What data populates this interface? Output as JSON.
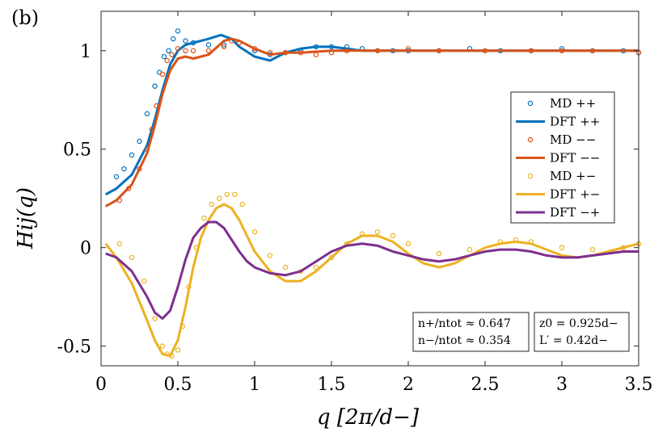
{
  "chart_data": {
    "type": "line",
    "panel_label": "(b)",
    "xlabel": "q [2π/d−]",
    "ylabel": "Hij(q)",
    "xlim": [
      0,
      3.5
    ],
    "ylim": [
      -0.6,
      1.2
    ],
    "xticks": [
      0,
      0.5,
      1,
      1.5,
      2,
      2.5,
      3,
      3.5
    ],
    "xtick_labels": [
      "0",
      "0.5",
      "1",
      "1.5",
      "2",
      "2.5",
      "3",
      "3.5"
    ],
    "yticks": [
      -0.5,
      0,
      0.5,
      1
    ],
    "ytick_labels": [
      "-0.5",
      "0",
      "0.5",
      "1"
    ],
    "grid": false,
    "legend_position": "right",
    "colors": {
      "pp": "#0072BD",
      "mm": "#D95319",
      "pm": "#EDB120",
      "mp": "#7E2F8E"
    },
    "series": [
      {
        "name": "MD ++",
        "kind": "markers",
        "color": "#0072BD",
        "x": [
          0.1,
          0.15,
          0.2,
          0.25,
          0.3,
          0.35,
          0.38,
          0.41,
          0.44,
          0.47,
          0.5,
          0.55,
          0.6,
          0.7,
          0.8,
          0.9,
          1.0,
          1.1,
          1.2,
          1.3,
          1.4,
          1.5,
          1.6,
          1.7,
          1.8,
          1.9,
          2.0,
          2.2,
          2.4,
          2.6,
          2.8,
          3.0,
          3.2,
          3.4,
          3.5
        ],
        "y": [
          0.36,
          0.4,
          0.47,
          0.54,
          0.68,
          0.82,
          0.89,
          0.97,
          1.0,
          1.06,
          1.1,
          1.05,
          1.04,
          1.03,
          1.03,
          1.04,
          1.0,
          0.98,
          0.99,
          1.0,
          1.02,
          1.02,
          1.02,
          1.01,
          1.0,
          1.0,
          1.0,
          1.0,
          1.01,
          1.0,
          1.0,
          1.01,
          1.0,
          1.0,
          0.99
        ]
      },
      {
        "name": "DFT ++",
        "kind": "line",
        "color": "#0072BD",
        "x": [
          0.03,
          0.1,
          0.2,
          0.3,
          0.35,
          0.4,
          0.45,
          0.5,
          0.55,
          0.6,
          0.7,
          0.78,
          0.85,
          0.9,
          1.0,
          1.1,
          1.2,
          1.3,
          1.4,
          1.5,
          1.6,
          1.7,
          1.8,
          2.0,
          2.5,
          3.0,
          3.5
        ],
        "y": [
          0.27,
          0.3,
          0.37,
          0.52,
          0.65,
          0.8,
          0.93,
          1.0,
          1.03,
          1.04,
          1.06,
          1.08,
          1.06,
          1.02,
          0.97,
          0.95,
          0.99,
          1.01,
          1.02,
          1.02,
          1.01,
          1.0,
          1.0,
          1.0,
          1.0,
          1.0,
          1.0
        ]
      },
      {
        "name": "MD −−",
        "kind": "markers",
        "color": "#D95319",
        "x": [
          0.12,
          0.18,
          0.25,
          0.3,
          0.33,
          0.36,
          0.4,
          0.43,
          0.46,
          0.5,
          0.55,
          0.6,
          0.7,
          0.8,
          0.85,
          0.9,
          1.0,
          1.1,
          1.2,
          1.3,
          1.4,
          1.5,
          1.6,
          1.8,
          2.0,
          2.2,
          2.5,
          2.8,
          3.0,
          3.2,
          3.5
        ],
        "y": [
          0.24,
          0.3,
          0.4,
          0.5,
          0.6,
          0.72,
          0.88,
          0.95,
          0.98,
          1.01,
          1.0,
          1.0,
          1.0,
          1.02,
          1.05,
          1.04,
          1.01,
          0.99,
          0.99,
          0.99,
          0.98,
          0.99,
          1.0,
          1.0,
          1.01,
          1.0,
          1.0,
          1.0,
          1.0,
          1.0,
          0.99
        ]
      },
      {
        "name": "DFT −−",
        "kind": "line",
        "color": "#D95319",
        "x": [
          0.03,
          0.1,
          0.2,
          0.3,
          0.35,
          0.4,
          0.45,
          0.5,
          0.55,
          0.6,
          0.7,
          0.8,
          0.85,
          0.9,
          1.0,
          1.1,
          1.2,
          1.3,
          1.5,
          1.7,
          2.0,
          2.5,
          3.0,
          3.5
        ],
        "y": [
          0.21,
          0.24,
          0.32,
          0.48,
          0.62,
          0.78,
          0.9,
          0.96,
          0.97,
          0.96,
          0.98,
          1.05,
          1.06,
          1.05,
          1.01,
          0.98,
          0.99,
          0.99,
          1.0,
          1.0,
          1.0,
          1.0,
          1.0,
          1.0
        ]
      },
      {
        "name": "MD +−",
        "kind": "markers",
        "color": "#EDB120",
        "x": [
          0.12,
          0.2,
          0.28,
          0.35,
          0.4,
          0.43,
          0.46,
          0.5,
          0.53,
          0.57,
          0.62,
          0.67,
          0.72,
          0.77,
          0.82,
          0.87,
          0.92,
          1.0,
          1.1,
          1.2,
          1.3,
          1.4,
          1.5,
          1.6,
          1.7,
          1.8,
          1.9,
          2.0,
          2.2,
          2.4,
          2.6,
          2.7,
          2.8,
          3.0,
          3.2,
          3.4,
          3.5
        ],
        "y": [
          0.02,
          -0.05,
          -0.17,
          -0.36,
          -0.5,
          -0.54,
          -0.55,
          -0.52,
          -0.4,
          -0.2,
          0.0,
          0.15,
          0.22,
          0.25,
          0.27,
          0.27,
          0.22,
          0.08,
          -0.04,
          -0.1,
          -0.12,
          -0.1,
          -0.05,
          0.02,
          0.07,
          0.08,
          0.06,
          0.02,
          -0.03,
          -0.01,
          0.03,
          0.04,
          0.03,
          0.0,
          -0.01,
          0.0,
          0.02
        ]
      },
      {
        "name": "DFT +−",
        "kind": "line",
        "color": "#EDB120",
        "x": [
          0.03,
          0.1,
          0.2,
          0.3,
          0.35,
          0.4,
          0.45,
          0.5,
          0.55,
          0.6,
          0.65,
          0.7,
          0.75,
          0.8,
          0.85,
          0.9,
          0.95,
          1.0,
          1.1,
          1.2,
          1.3,
          1.4,
          1.5,
          1.6,
          1.7,
          1.8,
          1.9,
          2.0,
          2.1,
          2.2,
          2.3,
          2.4,
          2.5,
          2.6,
          2.7,
          2.8,
          2.9,
          3.0,
          3.1,
          3.2,
          3.3,
          3.4,
          3.5
        ],
        "y": [
          0.02,
          -0.05,
          -0.18,
          -0.37,
          -0.47,
          -0.54,
          -0.55,
          -0.47,
          -0.3,
          -0.1,
          0.05,
          0.14,
          0.2,
          0.22,
          0.2,
          0.14,
          0.06,
          -0.02,
          -0.12,
          -0.17,
          -0.17,
          -0.12,
          -0.05,
          0.02,
          0.06,
          0.06,
          0.03,
          -0.03,
          -0.08,
          -0.1,
          -0.08,
          -0.04,
          0.0,
          0.02,
          0.03,
          0.02,
          -0.01,
          -0.04,
          -0.05,
          -0.04,
          -0.02,
          0.0,
          0.02
        ]
      },
      {
        "name": "DFT −+",
        "kind": "line",
        "color": "#7E2F8E",
        "x": [
          0.03,
          0.1,
          0.2,
          0.3,
          0.35,
          0.4,
          0.45,
          0.5,
          0.55,
          0.6,
          0.65,
          0.7,
          0.75,
          0.8,
          0.85,
          0.9,
          0.95,
          1.0,
          1.1,
          1.2,
          1.3,
          1.4,
          1.5,
          1.6,
          1.7,
          1.8,
          1.9,
          2.0,
          2.1,
          2.2,
          2.3,
          2.4,
          2.5,
          2.6,
          2.7,
          2.8,
          2.9,
          3.0,
          3.1,
          3.2,
          3.3,
          3.4,
          3.5
        ],
        "y": [
          -0.03,
          -0.05,
          -0.12,
          -0.25,
          -0.33,
          -0.36,
          -0.32,
          -0.2,
          -0.06,
          0.05,
          0.1,
          0.13,
          0.13,
          0.1,
          0.04,
          -0.02,
          -0.07,
          -0.1,
          -0.13,
          -0.14,
          -0.12,
          -0.07,
          -0.02,
          0.01,
          0.02,
          0.01,
          -0.02,
          -0.04,
          -0.06,
          -0.07,
          -0.06,
          -0.04,
          -0.02,
          -0.01,
          -0.01,
          -0.02,
          -0.04,
          -0.05,
          -0.05,
          -0.04,
          -0.03,
          -0.02,
          -0.02
        ]
      }
    ],
    "annotations": [
      {
        "lines": [
          "n+/ntot ≈ 0.647",
          "n−/ntot ≈ 0.354"
        ]
      },
      {
        "lines": [
          "z0 = 0.925d−",
          "L′ = 0.42d−"
        ]
      }
    ]
  }
}
